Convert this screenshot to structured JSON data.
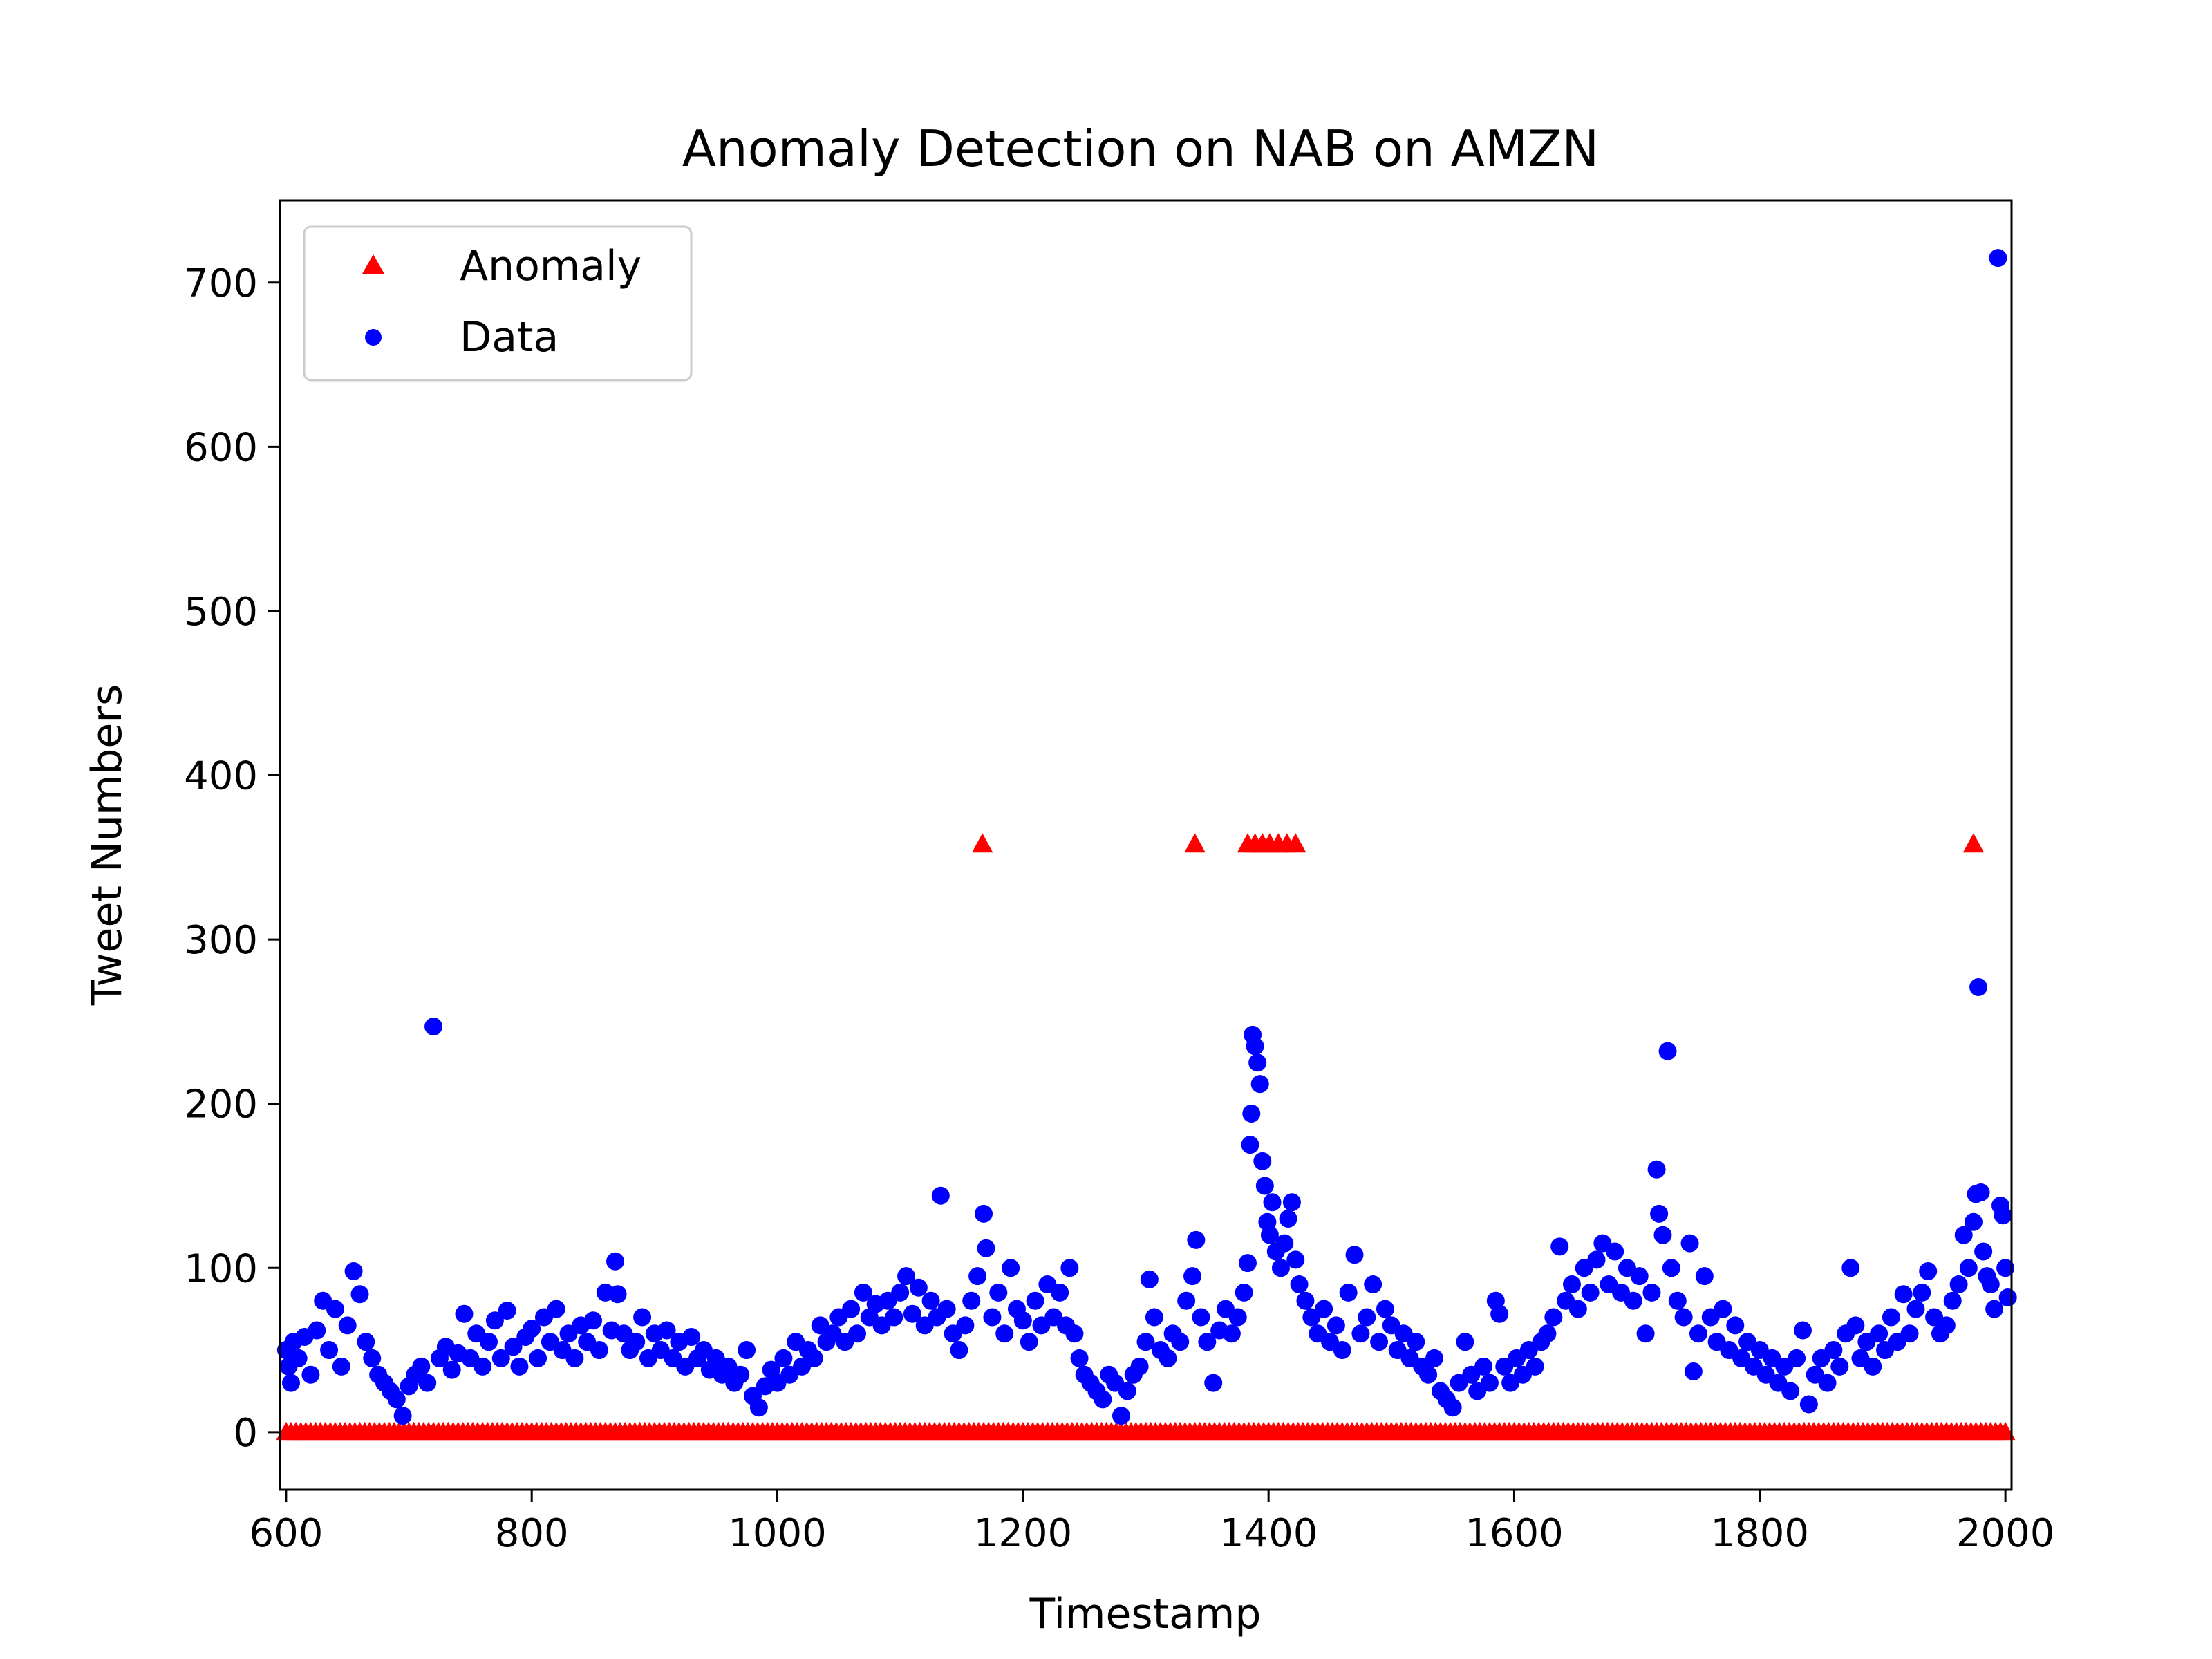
{
  "chart_data": {
    "type": "scatter",
    "title": "Anomaly Detection on NAB on AMZN",
    "xlabel": "Timestamp",
    "ylabel": "Tweet Numbers",
    "xlim": [
      595,
      2005
    ],
    "ylim": [
      -35,
      750
    ],
    "xticks": [
      600,
      800,
      1000,
      1200,
      1400,
      1600,
      1800,
      2000
    ],
    "yticks": [
      0,
      100,
      200,
      300,
      400,
      500,
      600,
      700
    ],
    "grid": false,
    "legend_position": "top-left",
    "series": [
      {
        "name": "Anomaly",
        "marker": "triangle",
        "color": "#ff0000",
        "baseline_range": [
          600,
          2000
        ],
        "baseline_value": 0,
        "points": [
          [
            1167,
            358
          ],
          [
            1340,
            358
          ],
          [
            1383,
            358
          ],
          [
            1389,
            358
          ],
          [
            1395,
            358
          ],
          [
            1401,
            358
          ],
          [
            1408,
            358
          ],
          [
            1415,
            358
          ],
          [
            1422,
            358
          ],
          [
            1974,
            358
          ]
        ]
      },
      {
        "name": "Data",
        "marker": "circle",
        "color": "#0000ff",
        "points": [
          [
            600,
            50
          ],
          [
            602,
            40
          ],
          [
            604,
            30
          ],
          [
            606,
            55
          ],
          [
            610,
            45
          ],
          [
            615,
            58
          ],
          [
            620,
            35
          ],
          [
            625,
            62
          ],
          [
            630,
            80
          ],
          [
            635,
            50
          ],
          [
            640,
            75
          ],
          [
            645,
            40
          ],
          [
            650,
            65
          ],
          [
            655,
            98
          ],
          [
            660,
            84
          ],
          [
            665,
            55
          ],
          [
            670,
            45
          ],
          [
            675,
            35
          ],
          [
            680,
            30
          ],
          [
            685,
            25
          ],
          [
            690,
            20
          ],
          [
            695,
            10
          ],
          [
            700,
            28
          ],
          [
            705,
            35
          ],
          [
            710,
            40
          ],
          [
            715,
            30
          ],
          [
            720,
            247
          ],
          [
            725,
            45
          ],
          [
            730,
            52
          ],
          [
            735,
            38
          ],
          [
            740,
            48
          ],
          [
            745,
            72
          ],
          [
            750,
            45
          ],
          [
            755,
            60
          ],
          [
            760,
            40
          ],
          [
            765,
            55
          ],
          [
            770,
            68
          ],
          [
            775,
            45
          ],
          [
            780,
            74
          ],
          [
            785,
            52
          ],
          [
            790,
            40
          ],
          [
            795,
            58
          ],
          [
            800,
            63
          ],
          [
            805,
            45
          ],
          [
            810,
            70
          ],
          [
            815,
            55
          ],
          [
            820,
            75
          ],
          [
            825,
            50
          ],
          [
            830,
            60
          ],
          [
            835,
            45
          ],
          [
            840,
            65
          ],
          [
            845,
            55
          ],
          [
            850,
            68
          ],
          [
            855,
            50
          ],
          [
            860,
            85
          ],
          [
            865,
            62
          ],
          [
            868,
            104
          ],
          [
            870,
            84
          ],
          [
            875,
            60
          ],
          [
            880,
            50
          ],
          [
            885,
            55
          ],
          [
            890,
            70
          ],
          [
            895,
            45
          ],
          [
            900,
            60
          ],
          [
            905,
            50
          ],
          [
            910,
            62
          ],
          [
            915,
            45
          ],
          [
            920,
            55
          ],
          [
            925,
            40
          ],
          [
            930,
            58
          ],
          [
            935,
            45
          ],
          [
            940,
            50
          ],
          [
            945,
            38
          ],
          [
            950,
            45
          ],
          [
            955,
            35
          ],
          [
            960,
            40
          ],
          [
            965,
            30
          ],
          [
            970,
            35
          ],
          [
            975,
            50
          ],
          [
            980,
            22
          ],
          [
            985,
            15
          ],
          [
            990,
            28
          ],
          [
            995,
            38
          ],
          [
            1000,
            30
          ],
          [
            1005,
            45
          ],
          [
            1010,
            35
          ],
          [
            1015,
            55
          ],
          [
            1020,
            40
          ],
          [
            1025,
            50
          ],
          [
            1030,
            45
          ],
          [
            1035,
            65
          ],
          [
            1040,
            55
          ],
          [
            1045,
            60
          ],
          [
            1050,
            70
          ],
          [
            1055,
            55
          ],
          [
            1060,
            75
          ],
          [
            1065,
            60
          ],
          [
            1070,
            85
          ],
          [
            1075,
            70
          ],
          [
            1080,
            78
          ],
          [
            1085,
            65
          ],
          [
            1090,
            80
          ],
          [
            1095,
            70
          ],
          [
            1100,
            85
          ],
          [
            1105,
            95
          ],
          [
            1110,
            72
          ],
          [
            1115,
            88
          ],
          [
            1120,
            65
          ],
          [
            1125,
            80
          ],
          [
            1130,
            70
          ],
          [
            1133,
            144
          ],
          [
            1138,
            75
          ],
          [
            1143,
            60
          ],
          [
            1148,
            50
          ],
          [
            1153,
            65
          ],
          [
            1158,
            80
          ],
          [
            1163,
            95
          ],
          [
            1168,
            133
          ],
          [
            1170,
            112
          ],
          [
            1175,
            70
          ],
          [
            1180,
            85
          ],
          [
            1185,
            60
          ],
          [
            1190,
            100
          ],
          [
            1195,
            75
          ],
          [
            1200,
            68
          ],
          [
            1205,
            55
          ],
          [
            1210,
            80
          ],
          [
            1215,
            65
          ],
          [
            1220,
            90
          ],
          [
            1225,
            70
          ],
          [
            1230,
            85
          ],
          [
            1235,
            65
          ],
          [
            1238,
            100
          ],
          [
            1242,
            60
          ],
          [
            1246,
            45
          ],
          [
            1250,
            35
          ],
          [
            1255,
            30
          ],
          [
            1260,
            25
          ],
          [
            1265,
            20
          ],
          [
            1270,
            35
          ],
          [
            1275,
            30
          ],
          [
            1280,
            10
          ],
          [
            1285,
            25
          ],
          [
            1290,
            35
          ],
          [
            1295,
            40
          ],
          [
            1300,
            55
          ],
          [
            1303,
            93
          ],
          [
            1307,
            70
          ],
          [
            1312,
            50
          ],
          [
            1318,
            45
          ],
          [
            1322,
            60
          ],
          [
            1328,
            55
          ],
          [
            1333,
            80
          ],
          [
            1338,
            95
          ],
          [
            1341,
            117
          ],
          [
            1345,
            70
          ],
          [
            1350,
            55
          ],
          [
            1355,
            30
          ],
          [
            1360,
            62
          ],
          [
            1365,
            75
          ],
          [
            1370,
            60
          ],
          [
            1375,
            70
          ],
          [
            1380,
            85
          ],
          [
            1383,
            103
          ],
          [
            1385,
            175
          ],
          [
            1386,
            194
          ],
          [
            1387,
            242
          ],
          [
            1389,
            235
          ],
          [
            1391,
            225
          ],
          [
            1393,
            212
          ],
          [
            1395,
            165
          ],
          [
            1397,
            150
          ],
          [
            1399,
            128
          ],
          [
            1401,
            120
          ],
          [
            1403,
            140
          ],
          [
            1406,
            110
          ],
          [
            1410,
            100
          ],
          [
            1413,
            115
          ],
          [
            1416,
            130
          ],
          [
            1419,
            140
          ],
          [
            1422,
            105
          ],
          [
            1425,
            90
          ],
          [
            1430,
            80
          ],
          [
            1435,
            70
          ],
          [
            1440,
            60
          ],
          [
            1445,
            75
          ],
          [
            1450,
            55
          ],
          [
            1455,
            65
          ],
          [
            1460,
            50
          ],
          [
            1465,
            85
          ],
          [
            1470,
            108
          ],
          [
            1475,
            60
          ],
          [
            1480,
            70
          ],
          [
            1485,
            90
          ],
          [
            1490,
            55
          ],
          [
            1495,
            75
          ],
          [
            1500,
            65
          ],
          [
            1505,
            50
          ],
          [
            1510,
            60
          ],
          [
            1515,
            45
          ],
          [
            1520,
            55
          ],
          [
            1525,
            40
          ],
          [
            1530,
            35
          ],
          [
            1535,
            45
          ],
          [
            1540,
            25
          ],
          [
            1545,
            20
          ],
          [
            1550,
            15
          ],
          [
            1555,
            30
          ],
          [
            1560,
            55
          ],
          [
            1565,
            35
          ],
          [
            1570,
            25
          ],
          [
            1575,
            40
          ],
          [
            1580,
            30
          ],
          [
            1585,
            80
          ],
          [
            1588,
            72
          ],
          [
            1592,
            40
          ],
          [
            1597,
            30
          ],
          [
            1602,
            45
          ],
          [
            1607,
            35
          ],
          [
            1612,
            50
          ],
          [
            1617,
            40
          ],
          [
            1622,
            55
          ],
          [
            1627,
            60
          ],
          [
            1632,
            70
          ],
          [
            1637,
            113
          ],
          [
            1642,
            80
          ],
          [
            1647,
            90
          ],
          [
            1652,
            75
          ],
          [
            1657,
            100
          ],
          [
            1662,
            85
          ],
          [
            1667,
            105
          ],
          [
            1672,
            115
          ],
          [
            1677,
            90
          ],
          [
            1682,
            110
          ],
          [
            1687,
            85
          ],
          [
            1692,
            100
          ],
          [
            1697,
            80
          ],
          [
            1702,
            95
          ],
          [
            1707,
            60
          ],
          [
            1712,
            85
          ],
          [
            1716,
            160
          ],
          [
            1718,
            133
          ],
          [
            1721,
            120
          ],
          [
            1725,
            232
          ],
          [
            1728,
            100
          ],
          [
            1733,
            80
          ],
          [
            1738,
            70
          ],
          [
            1743,
            115
          ],
          [
            1746,
            37
          ],
          [
            1750,
            60
          ],
          [
            1755,
            95
          ],
          [
            1760,
            70
          ],
          [
            1765,
            55
          ],
          [
            1770,
            75
          ],
          [
            1775,
            50
          ],
          [
            1780,
            65
          ],
          [
            1785,
            45
          ],
          [
            1790,
            55
          ],
          [
            1795,
            40
          ],
          [
            1800,
            50
          ],
          [
            1805,
            35
          ],
          [
            1810,
            45
          ],
          [
            1815,
            30
          ],
          [
            1820,
            40
          ],
          [
            1825,
            25
          ],
          [
            1830,
            45
          ],
          [
            1835,
            62
          ],
          [
            1840,
            17
          ],
          [
            1845,
            35
          ],
          [
            1850,
            45
          ],
          [
            1855,
            30
          ],
          [
            1860,
            50
          ],
          [
            1865,
            40
          ],
          [
            1870,
            60
          ],
          [
            1874,
            100
          ],
          [
            1878,
            65
          ],
          [
            1882,
            45
          ],
          [
            1887,
            55
          ],
          [
            1892,
            40
          ],
          [
            1897,
            60
          ],
          [
            1902,
            50
          ],
          [
            1907,
            70
          ],
          [
            1912,
            55
          ],
          [
            1917,
            84
          ],
          [
            1922,
            60
          ],
          [
            1927,
            75
          ],
          [
            1932,
            85
          ],
          [
            1937,
            98
          ],
          [
            1942,
            70
          ],
          [
            1947,
            60
          ],
          [
            1952,
            65
          ],
          [
            1957,
            80
          ],
          [
            1962,
            90
          ],
          [
            1966,
            120
          ],
          [
            1970,
            100
          ],
          [
            1974,
            128
          ],
          [
            1976,
            145
          ],
          [
            1978,
            271
          ],
          [
            1980,
            146
          ],
          [
            1982,
            110
          ],
          [
            1985,
            95
          ],
          [
            1988,
            90
          ],
          [
            1991,
            75
          ],
          [
            1994,
            715
          ],
          [
            1996,
            138
          ],
          [
            1998,
            132
          ],
          [
            2000,
            100
          ],
          [
            2002,
            82
          ]
        ]
      }
    ]
  }
}
